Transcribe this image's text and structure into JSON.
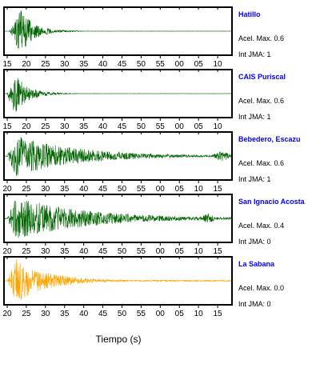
{
  "colors": {
    "trace_default": "#006400",
    "trace_highlight": "#ffa500",
    "station_label": "#0000ff",
    "frame": "#000000"
  },
  "xlabel": "Tiempo (s)",
  "chart_data": [
    {
      "type": "line",
      "station": "Hatillo",
      "accel_label": "Acel. Max. 0.6",
      "jma_label": "Int JMA: 1",
      "color": "#006400",
      "x_ticks": [
        "15",
        "20",
        "25",
        "30",
        "35",
        "40",
        "45",
        "50",
        "55",
        "00",
        "05",
        "10"
      ],
      "envelope": {
        "onset": 0.02,
        "peak_at": 0.07,
        "peak_amp": 1.0,
        "decay": 0.06,
        "noise": 0.02,
        "tail_burst": null
      }
    },
    {
      "type": "line",
      "station": "CAIS Puriscal",
      "accel_label": "Acel. Max. 0.6",
      "jma_label": "Int JMA: 1",
      "color": "#006400",
      "x_ticks": [
        "15",
        "20",
        "25",
        "30",
        "35",
        "40",
        "45",
        "50",
        "55",
        "00",
        "05",
        "10"
      ],
      "envelope": {
        "onset": 0.01,
        "peak_at": 0.04,
        "peak_amp": 1.0,
        "decay": 0.06,
        "noise": 0.02,
        "tail_burst": null
      }
    },
    {
      "type": "line",
      "station": "Bebedero, Escazu",
      "accel_label": "Acel. Max. 0.6",
      "jma_label": "Int JMA: 1",
      "color": "#006400",
      "x_ticks": [
        "20",
        "25",
        "30",
        "35",
        "40",
        "45",
        "50",
        "55",
        "00",
        "05",
        "10",
        "15"
      ],
      "envelope": {
        "onset": 0.01,
        "peak_at": 0.05,
        "peak_amp": 0.9,
        "decay": 0.28,
        "noise": 0.08,
        "tail_burst": 0.96
      }
    },
    {
      "type": "line",
      "station": "San Ignacio Acosta",
      "accel_label": "Acel. Max. 0.4",
      "jma_label": "Int JMA: 0",
      "color": "#006400",
      "x_ticks": [
        "20",
        "25",
        "30",
        "35",
        "40",
        "45",
        "50",
        "55",
        "00",
        "05",
        "10",
        "15"
      ],
      "envelope": {
        "onset": 0.01,
        "peak_at": 0.05,
        "peak_amp": 0.95,
        "decay": 0.32,
        "noise": 0.07,
        "tail_burst": 0.9
      }
    },
    {
      "type": "line",
      "station": "La Sabana",
      "accel_label": "Acel. Max. 0.0",
      "jma_label": "Int JMA: 0",
      "color": "#ffa500",
      "x_ticks": [
        "20",
        "25",
        "30",
        "35",
        "40",
        "45",
        "50",
        "55",
        "00",
        "05",
        "10",
        "15"
      ],
      "envelope": {
        "onset": 0.01,
        "peak_at": 0.05,
        "peak_amp": 1.0,
        "decay": 0.14,
        "noise": 0.12,
        "tail_burst": null
      }
    }
  ]
}
